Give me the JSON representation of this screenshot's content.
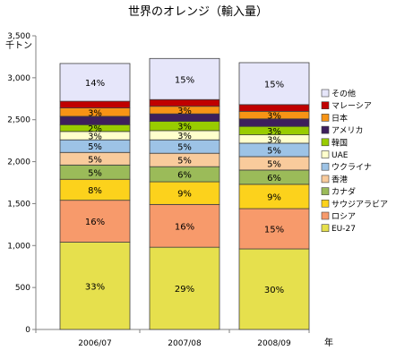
{
  "chart_data": {
    "type": "bar",
    "stacked": true,
    "title": "世界のオレンジ（輸入量）",
    "ylabel": "千トン",
    "xlabel": "年",
    "ylim": [
      0,
      3500
    ],
    "yticks": [
      0,
      500,
      1000,
      1500,
      2000,
      2500,
      3000,
      3500
    ],
    "ytick_labels": [
      "0",
      "500",
      "1,000",
      "1,500",
      "2,000",
      "2,500",
      "3,000",
      "3,500"
    ],
    "grid": false,
    "legend_position": "right",
    "categories": [
      "2006/07",
      "2007/08",
      "2008/09"
    ],
    "series": [
      {
        "name": "EU-27",
        "color": "#E6E04D",
        "values": [
          1040,
          980,
          960
        ],
        "labels": [
          "33%",
          "29%",
          "30%"
        ]
      },
      {
        "name": "ロシア",
        "color": "#F79A6B",
        "values": [
          500,
          510,
          480
        ],
        "labels": [
          "16%",
          "16%",
          "15%"
        ]
      },
      {
        "name": "サウジアラビア",
        "color": "#FCD21C",
        "values": [
          250,
          270,
          290
        ],
        "labels": [
          "8%",
          "9%",
          "9%"
        ]
      },
      {
        "name": "カナダ",
        "color": "#9BBB59",
        "values": [
          170,
          180,
          170
        ],
        "labels": [
          "5%",
          "6%",
          "6%"
        ]
      },
      {
        "name": "香港",
        "color": "#F9CB9C",
        "values": [
          150,
          160,
          160
        ],
        "labels": [
          "5%",
          "5%",
          "5%"
        ]
      },
      {
        "name": "ウクライナ",
        "color": "#9DC3E6",
        "values": [
          150,
          160,
          160
        ],
        "labels": [
          "5%",
          "5%",
          "5%"
        ]
      },
      {
        "name": "UAE",
        "color": "#FFFFCC",
        "values": [
          100,
          110,
          100
        ],
        "labels": [
          "3%",
          "3%",
          "3%"
        ]
      },
      {
        "name": "韓国",
        "color": "#99CC00",
        "values": [
          80,
          110,
          100
        ],
        "labels": [
          "2%",
          "3%",
          "3%"
        ]
      },
      {
        "name": "アメリカ",
        "color": "#3D1F5C",
        "values": [
          100,
          90,
          90
        ],
        "labels": [
          "",
          "",
          ""
        ]
      },
      {
        "name": "日本",
        "color": "#F79415",
        "values": [
          100,
          90,
          90
        ],
        "labels": [
          "3%",
          "3%",
          "3%"
        ]
      },
      {
        "name": "マレーシア",
        "color": "#C00000",
        "values": [
          80,
          80,
          80
        ],
        "labels": [
          "",
          "",
          ""
        ]
      },
      {
        "name": "その他",
        "color": "#E6E6FA",
        "values": [
          450,
          490,
          500
        ],
        "labels": [
          "14%",
          "15%",
          "15%"
        ]
      }
    ]
  }
}
